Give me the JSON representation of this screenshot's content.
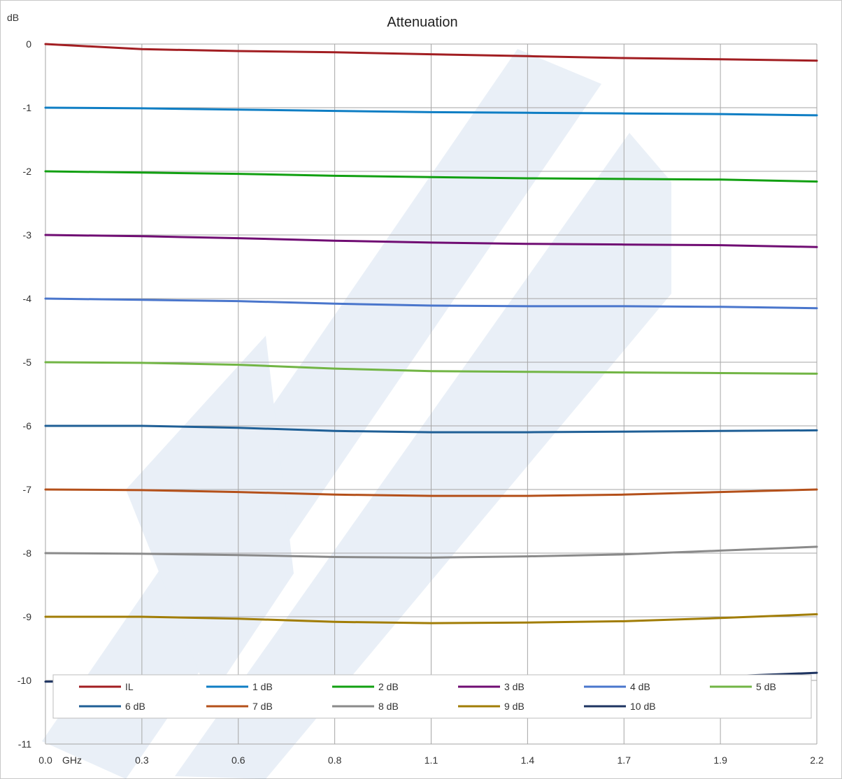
{
  "chart_data": {
    "type": "line",
    "title": "Attenuation",
    "ylabel": "dB",
    "xunit": "GHz",
    "xlim": [
      0,
      2.2
    ],
    "ylim": [
      -11,
      0
    ],
    "grid": true,
    "legend_placement": "bottom",
    "x_tick_labels": [
      "0.0",
      "0.3",
      "0.6",
      "0.8",
      "1.1",
      "1.4",
      "1.7",
      "1.9",
      "2.2"
    ],
    "y_tick_labels": [
      "0",
      "-1",
      "-2",
      "-3",
      "-4",
      "-5",
      "-6",
      "-7",
      "-8",
      "-9",
      "-10",
      "-11"
    ],
    "x": [
      0,
      0.275,
      0.55,
      0.825,
      1.1,
      1.375,
      1.65,
      1.925,
      2.2
    ],
    "series": [
      {
        "name": "IL",
        "color": "#a21e22",
        "values": [
          0,
          -0.08,
          -0.11,
          -0.13,
          -0.16,
          -0.19,
          -0.22,
          -0.24,
          -0.26
        ]
      },
      {
        "name": "1 dB",
        "color": "#0f7ec4",
        "values": [
          -1.0,
          -1.01,
          -1.03,
          -1.05,
          -1.07,
          -1.08,
          -1.09,
          -1.1,
          -1.12
        ]
      },
      {
        "name": "2 dB",
        "color": "#12a012",
        "values": [
          -2.0,
          -2.02,
          -2.04,
          -2.07,
          -2.09,
          -2.11,
          -2.12,
          -2.13,
          -2.16
        ]
      },
      {
        "name": "3 dB",
        "color": "#700d73",
        "values": [
          -3.0,
          -3.02,
          -3.05,
          -3.09,
          -3.12,
          -3.14,
          -3.15,
          -3.16,
          -3.19
        ]
      },
      {
        "name": "4 dB",
        "color": "#4a76cc",
        "values": [
          -4.0,
          -4.02,
          -4.04,
          -4.08,
          -4.11,
          -4.12,
          -4.12,
          -4.13,
          -4.15
        ]
      },
      {
        "name": "5 dB",
        "color": "#72b545",
        "values": [
          -5.0,
          -5.01,
          -5.04,
          -5.1,
          -5.14,
          -5.15,
          -5.16,
          -5.17,
          -5.18
        ]
      },
      {
        "name": "6 dB",
        "color": "#1f5f96",
        "values": [
          -6.0,
          -6.0,
          -6.03,
          -6.08,
          -6.1,
          -6.1,
          -6.09,
          -6.08,
          -6.07
        ]
      },
      {
        "name": "7 dB",
        "color": "#b4501a",
        "values": [
          -7.0,
          -7.01,
          -7.04,
          -7.08,
          -7.1,
          -7.1,
          -7.08,
          -7.04,
          -7.0
        ]
      },
      {
        "name": "8 dB",
        "color": "#8a8a8a",
        "values": [
          -8.0,
          -8.01,
          -8.03,
          -8.06,
          -8.07,
          -8.05,
          -8.02,
          -7.96,
          -7.9
        ]
      },
      {
        "name": "9 dB",
        "color": "#a17d06",
        "values": [
          -9.0,
          -9.0,
          -9.03,
          -9.08,
          -9.1,
          -9.09,
          -9.07,
          -9.02,
          -8.96
        ]
      },
      {
        "name": "10 dB",
        "color": "#1e3461",
        "values": [
          -10.02,
          -10.01,
          -10.01,
          -10.03,
          -10.03,
          -10.01,
          -9.99,
          -9.94,
          -9.88
        ]
      }
    ]
  }
}
